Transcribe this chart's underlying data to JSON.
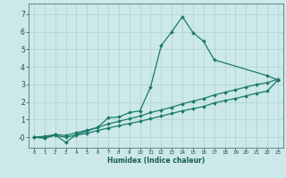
{
  "xlabel": "Humidex (Indice chaleur)",
  "bg_color": "#cce8e8",
  "grid_color": "#b0d0d0",
  "line_color": "#1a7a6a",
  "xlim": [
    -0.5,
    23.5
  ],
  "ylim": [
    -0.6,
    7.6
  ],
  "xticks": [
    0,
    1,
    2,
    3,
    4,
    5,
    6,
    7,
    8,
    9,
    10,
    11,
    12,
    13,
    14,
    15,
    16,
    17,
    18,
    19,
    20,
    21,
    22,
    23
  ],
  "yticks": [
    0,
    1,
    2,
    3,
    4,
    5,
    6,
    7
  ],
  "ytick_labels": [
    "-0",
    "1",
    "2",
    "3",
    "4",
    "5",
    "6",
    "7"
  ],
  "line1_x": [
    0,
    1,
    2,
    3,
    4,
    5,
    6,
    7,
    8,
    9,
    10,
    11,
    12,
    13,
    14,
    15,
    16,
    17,
    22,
    23
  ],
  "line1_y": [
    0,
    -0.05,
    0.15,
    -0.3,
    0.15,
    0.35,
    0.55,
    1.1,
    1.15,
    1.4,
    1.5,
    2.85,
    5.2,
    6.0,
    6.85,
    5.95,
    5.45,
    4.4,
    3.5,
    3.25
  ],
  "line2_x": [
    0,
    1,
    2,
    3,
    4,
    5,
    6,
    7,
    8,
    9,
    10,
    11,
    12,
    13,
    14,
    15,
    16,
    17,
    18,
    19,
    20,
    21,
    22,
    23
  ],
  "line2_y": [
    0,
    0.05,
    0.15,
    0.1,
    0.25,
    0.4,
    0.55,
    0.75,
    0.9,
    1.05,
    1.2,
    1.4,
    1.55,
    1.7,
    1.9,
    2.05,
    2.2,
    2.4,
    2.55,
    2.7,
    2.85,
    3.0,
    3.1,
    3.3
  ],
  "line3_x": [
    0,
    1,
    2,
    3,
    4,
    5,
    6,
    7,
    8,
    9,
    10,
    11,
    12,
    13,
    14,
    15,
    16,
    17,
    18,
    19,
    20,
    21,
    22,
    23
  ],
  "line3_y": [
    0,
    -0.05,
    0.1,
    0.0,
    0.12,
    0.22,
    0.38,
    0.52,
    0.65,
    0.78,
    0.9,
    1.05,
    1.2,
    1.35,
    1.5,
    1.62,
    1.75,
    1.95,
    2.08,
    2.2,
    2.35,
    2.5,
    2.62,
    3.25
  ]
}
